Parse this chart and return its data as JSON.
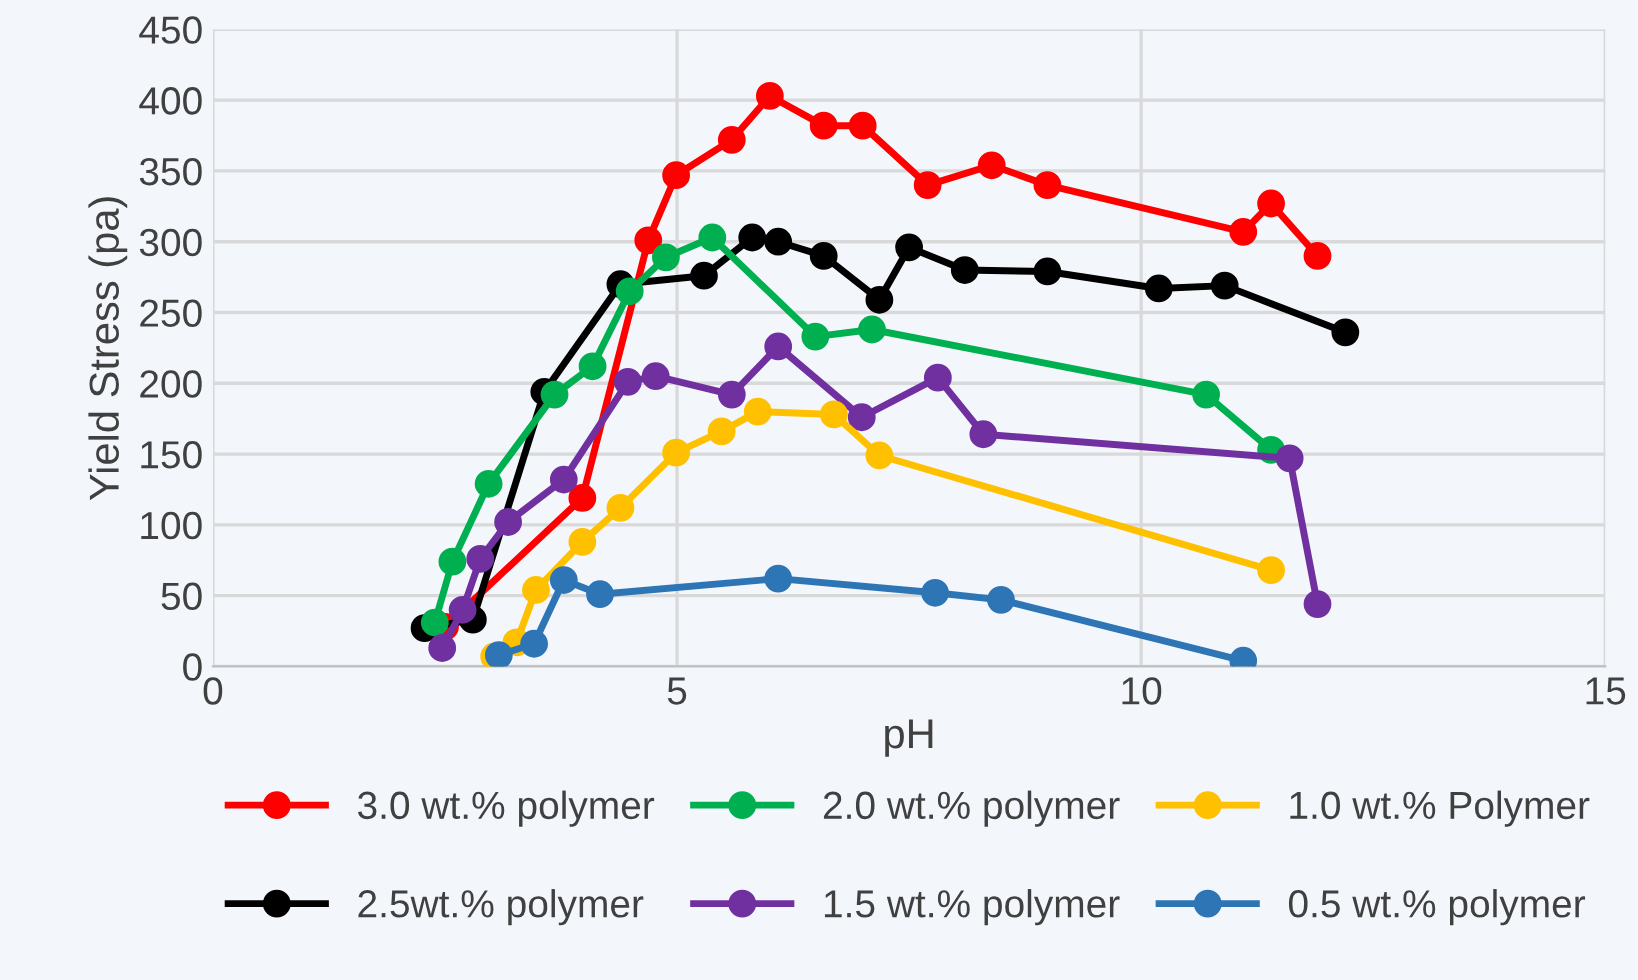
{
  "chart_data": {
    "type": "line",
    "xlabel": "pH",
    "ylabel": "Yield Stress (pa)",
    "xlim": [
      0,
      15
    ],
    "xticks": [
      0,
      5,
      10,
      15
    ],
    "ylim": [
      0,
      450
    ],
    "yticks": [
      0,
      50,
      100,
      150,
      200,
      250,
      300,
      350,
      400,
      450
    ],
    "grid": true,
    "legend": "bottom",
    "marker": "circle",
    "line_style": "solid",
    "series": [
      {
        "name": "3.0 wt.% polymer",
        "color": "#ff0000",
        "x": [
          2.5,
          3.98,
          4.69,
          4.99,
          5.59,
          6.0,
          6.58,
          7.0,
          7.7,
          8.39,
          8.99,
          11.1,
          11.4,
          11.9
        ],
        "values": [
          28,
          119,
          301,
          347,
          372,
          403,
          382,
          382,
          340,
          354,
          340,
          307,
          327,
          290
        ]
      },
      {
        "name": "2.5wt.% polymer",
        "color": "#000000",
        "x": [
          2.28,
          2.8,
          3.57,
          4.39,
          5.29,
          5.81,
          6.09,
          6.58,
          7.18,
          7.5,
          8.1,
          8.99,
          10.19,
          10.9,
          12.2
        ],
        "values": [
          27,
          33,
          194,
          270,
          276,
          303,
          300,
          290,
          259,
          296,
          280,
          279,
          267,
          269,
          236
        ]
      },
      {
        "name": "2.0 wt.% polymer",
        "color": "#00b050",
        "x": [
          2.39,
          2.58,
          2.97,
          3.68,
          4.09,
          4.49,
          4.88,
          5.38,
          6.49,
          7.1,
          10.7,
          11.4
        ],
        "values": [
          31,
          74,
          129,
          192,
          212,
          265,
          289,
          303,
          233,
          238,
          192,
          153
        ]
      },
      {
        "name": "1.5 wt.% polymer",
        "color": "#7030a0",
        "x": [
          2.47,
          2.69,
          2.88,
          3.18,
          3.78,
          4.47,
          4.77,
          5.59,
          6.09,
          6.99,
          7.81,
          8.3,
          11.6,
          11.9
        ],
        "values": [
          13,
          40,
          76,
          102,
          132,
          201,
          205,
          192,
          226,
          176,
          204,
          164,
          147,
          44
        ]
      },
      {
        "name": "1.0 wt.% Polymer",
        "color": "#ffc000",
        "x": [
          3.03,
          3.27,
          3.48,
          3.98,
          4.39,
          4.99,
          5.48,
          5.87,
          6.69,
          7.18,
          11.4
        ],
        "values": [
          7,
          17,
          54,
          88,
          112,
          151,
          166,
          180,
          178,
          149,
          68
        ]
      },
      {
        "name": "0.5 wt.% polymer",
        "color": "#2e75b6",
        "x": [
          3.08,
          3.46,
          3.78,
          4.17,
          6.09,
          7.78,
          8.49,
          11.1
        ],
        "values": [
          8,
          16,
          61,
          51,
          62,
          52,
          47,
          4
        ]
      }
    ]
  }
}
